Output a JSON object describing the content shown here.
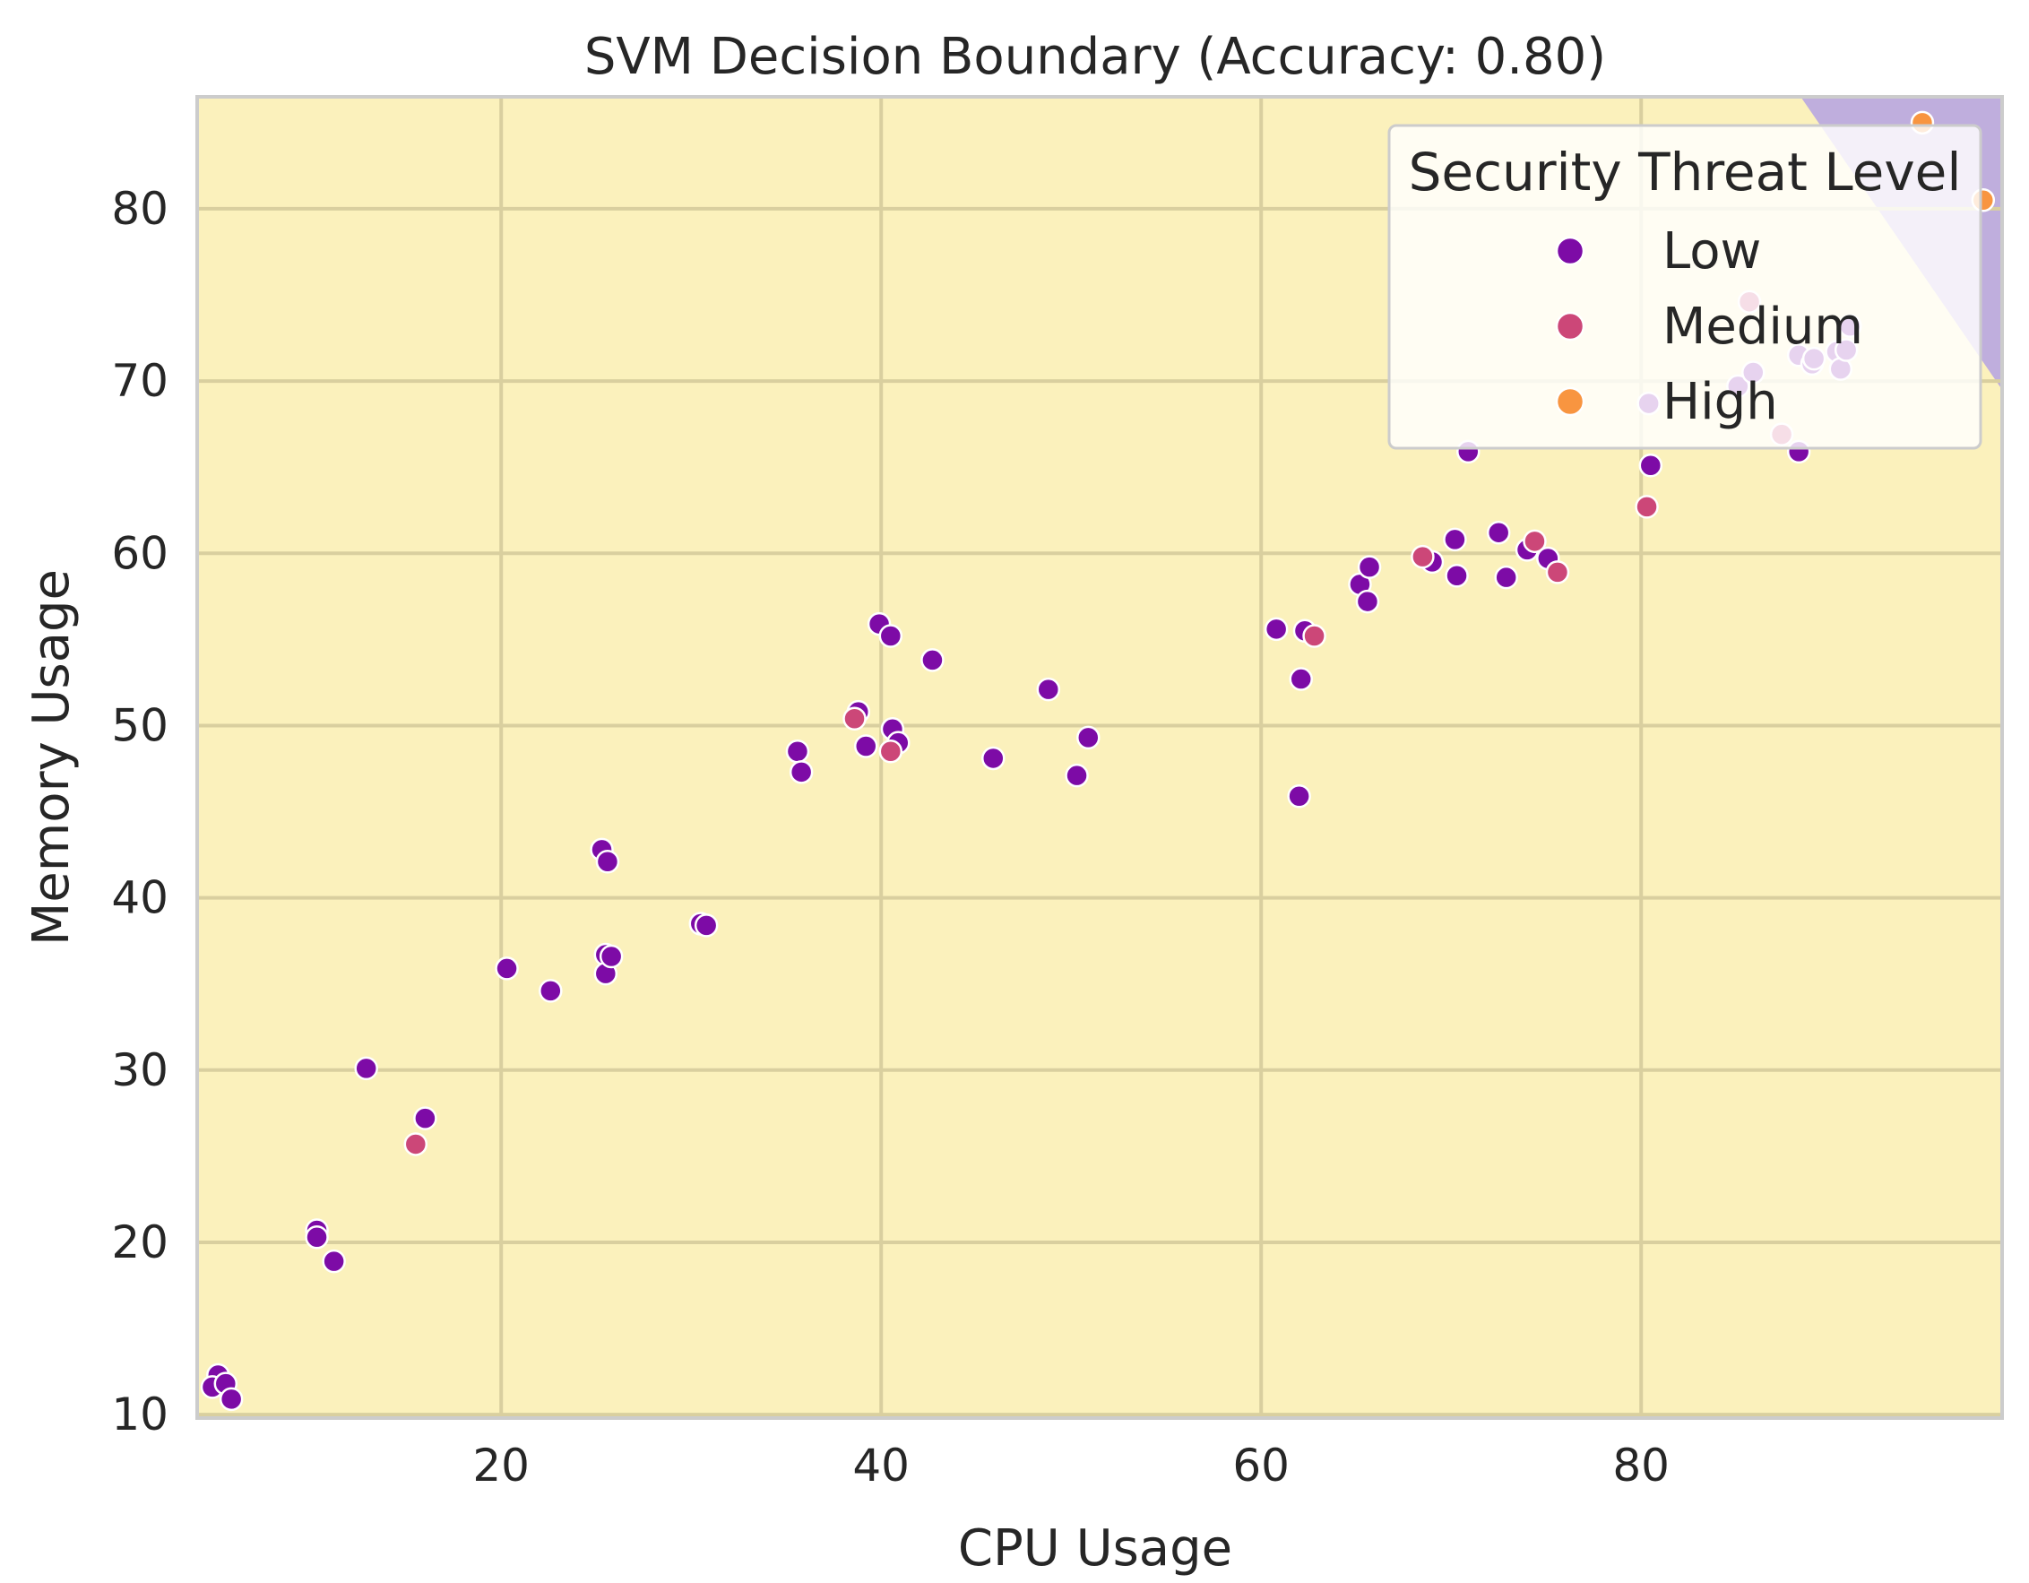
{
  "chart_data": {
    "type": "scatter",
    "title": "SVM Decision Boundary (Accuracy: 0.80)",
    "xlabel": "CPU Usage",
    "ylabel": "Memory Usage",
    "xlim": [
      4,
      99
    ],
    "ylim": [
      9.8,
      86.5
    ],
    "xticks": [
      20,
      40,
      60,
      80
    ],
    "yticks": [
      10,
      20,
      30,
      40,
      50,
      60,
      70,
      80
    ],
    "grid": true,
    "legend": {
      "title": "Security Threat Level",
      "position": "upper right",
      "entries": [
        "Low",
        "Medium",
        "High"
      ]
    },
    "decision_regions": [
      {
        "class": "Low",
        "color": "#fbf1bc"
      },
      {
        "class": "High",
        "color": "#bfaedd",
        "boundary": [
          [
            88.4,
            86.5
          ],
          [
            99,
            69.5
          ]
        ]
      }
    ],
    "colors": {
      "Low": "#7d0ba6",
      "Medium": "#cc4778",
      "High": "#f89540"
    },
    "series": [
      {
        "name": "Low",
        "points": [
          [
            5.1,
            12.3
          ],
          [
            4.8,
            11.6
          ],
          [
            5.5,
            11.8
          ],
          [
            5.8,
            10.9
          ],
          [
            10.3,
            20.7
          ],
          [
            10.3,
            20.3
          ],
          [
            11.2,
            18.9
          ],
          [
            12.9,
            30.1
          ],
          [
            16.0,
            27.2
          ],
          [
            20.3,
            35.9
          ],
          [
            22.6,
            34.6
          ],
          [
            25.3,
            42.8
          ],
          [
            25.6,
            42.1
          ],
          [
            25.5,
            36.7
          ],
          [
            25.5,
            35.6
          ],
          [
            25.8,
            36.6
          ],
          [
            30.5,
            38.5
          ],
          [
            30.8,
            38.4
          ],
          [
            35.6,
            48.5
          ],
          [
            35.8,
            47.3
          ],
          [
            38.8,
            50.8
          ],
          [
            39.2,
            48.8
          ],
          [
            39.9,
            55.9
          ],
          [
            40.5,
            55.2
          ],
          [
            40.6,
            49.8
          ],
          [
            40.9,
            49.0
          ],
          [
            42.7,
            53.8
          ],
          [
            45.9,
            48.1
          ],
          [
            48.8,
            52.1
          ],
          [
            50.3,
            47.1
          ],
          [
            50.9,
            49.3
          ],
          [
            60.8,
            55.6
          ],
          [
            62.0,
            45.9
          ],
          [
            62.1,
            52.7
          ],
          [
            62.3,
            55.5
          ],
          [
            65.2,
            58.2
          ],
          [
            65.6,
            57.2
          ],
          [
            65.7,
            59.2
          ],
          [
            69.0,
            59.5
          ],
          [
            70.2,
            60.8
          ],
          [
            70.3,
            58.7
          ],
          [
            70.9,
            65.9
          ],
          [
            72.5,
            61.2
          ],
          [
            72.9,
            58.6
          ],
          [
            74.0,
            60.2
          ],
          [
            75.1,
            59.7
          ],
          [
            80.5,
            65.1
          ],
          [
            80.4,
            68.7
          ],
          [
            85.1,
            69.7
          ],
          [
            85.9,
            70.5
          ],
          [
            88.3,
            65.9
          ],
          [
            88.3,
            71.5
          ],
          [
            89.0,
            71.0
          ],
          [
            89.1,
            71.3
          ],
          [
            90.3,
            71.7
          ],
          [
            90.5,
            70.7
          ],
          [
            91.0,
            73.2
          ],
          [
            90.8,
            71.8
          ]
        ]
      },
      {
        "name": "Medium",
        "points": [
          [
            15.5,
            25.7
          ],
          [
            38.6,
            50.4
          ],
          [
            40.5,
            48.5
          ],
          [
            62.8,
            55.2
          ],
          [
            68.5,
            59.8
          ],
          [
            74.4,
            60.7
          ],
          [
            75.6,
            58.9
          ],
          [
            80.3,
            62.7
          ],
          [
            85.7,
            74.6
          ],
          [
            87.4,
            66.9
          ]
        ]
      },
      {
        "name": "High",
        "points": [
          [
            94.8,
            85.0
          ],
          [
            98.0,
            80.5
          ]
        ]
      }
    ]
  }
}
